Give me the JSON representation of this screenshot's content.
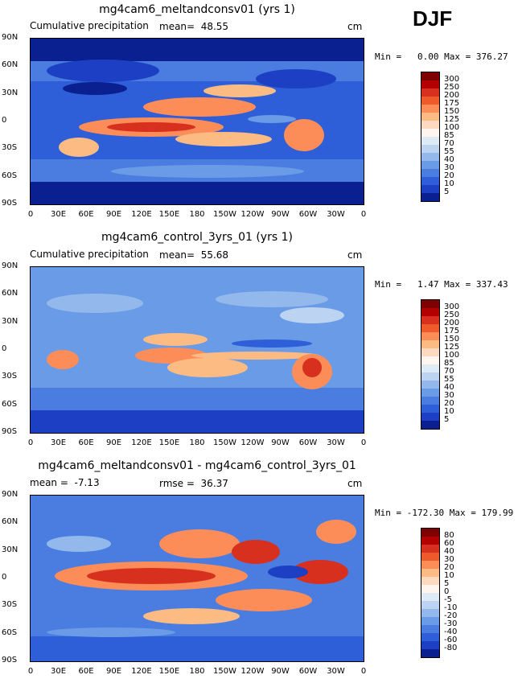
{
  "season": "DJF",
  "panels": [
    {
      "title": "mg4cam6_meltandconsv01 (yrs 1)",
      "left_label": "Cumulative precipitation",
      "center_label": "mean=  48.55",
      "units": "cm",
      "min_max": "Min =   0.00 Max = 376.27",
      "colorbar": {
        "labels": [
          "300",
          "250",
          "200",
          "175",
          "150",
          "125",
          "100",
          "85",
          "70",
          "55",
          "40",
          "30",
          "20",
          "10",
          "5"
        ],
        "colors": [
          "#7f0000",
          "#b30000",
          "#d7301f",
          "#ef5a2a",
          "#fc8d59",
          "#fdbb84",
          "#fdd9c0",
          "#fff5ee",
          "#deebf7",
          "#bcd3f2",
          "#93b8ec",
          "#6a9be6",
          "#4a7ddf",
          "#2e5ed8",
          "#1c3fc4",
          "#0a1f90"
        ]
      }
    },
    {
      "title": "mg4cam6_control_3yrs_01 (yrs 1)",
      "left_label": "Cumulative precipitation",
      "center_label": "mean=  55.68",
      "units": "cm",
      "min_max": "Min =   1.47 Max = 337.43",
      "colorbar": {
        "labels": [
          "300",
          "250",
          "200",
          "175",
          "150",
          "125",
          "100",
          "85",
          "70",
          "55",
          "40",
          "30",
          "20",
          "10",
          "5"
        ],
        "colors": [
          "#7f0000",
          "#b30000",
          "#d7301f",
          "#ef5a2a",
          "#fc8d59",
          "#fdbb84",
          "#fdd9c0",
          "#fff5ee",
          "#deebf7",
          "#bcd3f2",
          "#93b8ec",
          "#6a9be6",
          "#4a7ddf",
          "#2e5ed8",
          "#1c3fc4",
          "#0a1f90"
        ]
      }
    },
    {
      "title": "mg4cam6_meltandconsv01 - mg4cam6_control_3yrs_01",
      "left_label": "mean =  -7.13",
      "center_label": "rmse =  36.37",
      "units": "cm",
      "min_max": "Min = -172.30 Max = 179.99",
      "colorbar": {
        "labels": [
          "80",
          "60",
          "40",
          "30",
          "20",
          "10",
          "5",
          "0",
          "-5",
          "-10",
          "-20",
          "-30",
          "-40",
          "-60",
          "-80"
        ],
        "colors": [
          "#7f0000",
          "#b30000",
          "#d7301f",
          "#ef5a2a",
          "#fc8d59",
          "#fdbb84",
          "#fdd9c0",
          "#fff5ee",
          "#deebf7",
          "#bcd3f2",
          "#93b8ec",
          "#6a9be6",
          "#4a7ddf",
          "#2e5ed8",
          "#1c3fc4",
          "#0a1f90"
        ]
      }
    }
  ],
  "lat_labels": [
    "90N",
    "60N",
    "30N",
    "0",
    "30S",
    "60S",
    "90S"
  ],
  "lon_labels": [
    "0",
    "30E",
    "60E",
    "90E",
    "120E",
    "150E",
    "180",
    "150W",
    "120W",
    "90W",
    "60W",
    "30W",
    "0"
  ]
}
